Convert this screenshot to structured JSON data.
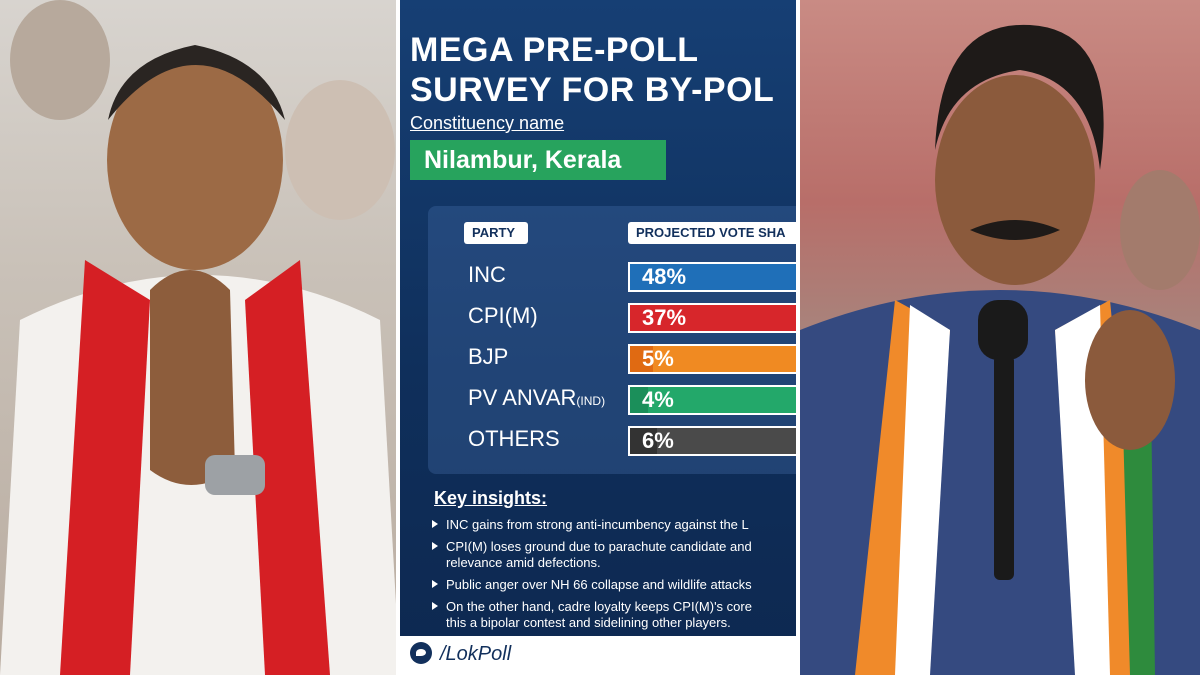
{
  "title_lines": [
    "MEGA PRE-POLL",
    "SURVEY FOR BY-POL"
  ],
  "constituency_label": "Constituency name",
  "constituency_name": "Nilambur, Kerala",
  "colors": {
    "background": "#12366a",
    "inc": "#1f6fb8",
    "cpim": "#d7262b",
    "bjp": "#e06a12",
    "pv_anvar": "#1b8f5a",
    "others": "#333333",
    "constituency_box": "#27a35d"
  },
  "chart_data": {
    "type": "bar",
    "headers": [
      "PARTY",
      "PROJECTED VOTE SHA"
    ],
    "categories": [
      "INC",
      "CPI(M)",
      "BJP",
      "PV ANVAR",
      "OTHERS"
    ],
    "category_suffix": [
      "",
      "",
      "",
      "(IND)",
      ""
    ],
    "values": [
      48,
      37,
      5,
      4,
      6
    ],
    "value_labels": [
      "48%",
      "37%",
      "5%",
      "4%",
      "6%"
    ],
    "unit": "%"
  },
  "insights_title": "Key insights:",
  "insights": [
    [
      "INC gains from strong anti-incumbency against the L"
    ],
    [
      "CPI(M) loses ground due to parachute candidate and",
      "relevance amid defections."
    ],
    [
      "Public anger over NH 66 collapse and wildlife attacks"
    ],
    [
      "On the other hand, cadre loyalty keeps CPI(M)'s core",
      "this a bipolar contest and sidelining other players."
    ]
  ],
  "footer_handle": "/LokPoll",
  "left_photo_icon": "person-folded-hands-photo",
  "right_photo_icon": "person-speaking-microphone-photo"
}
